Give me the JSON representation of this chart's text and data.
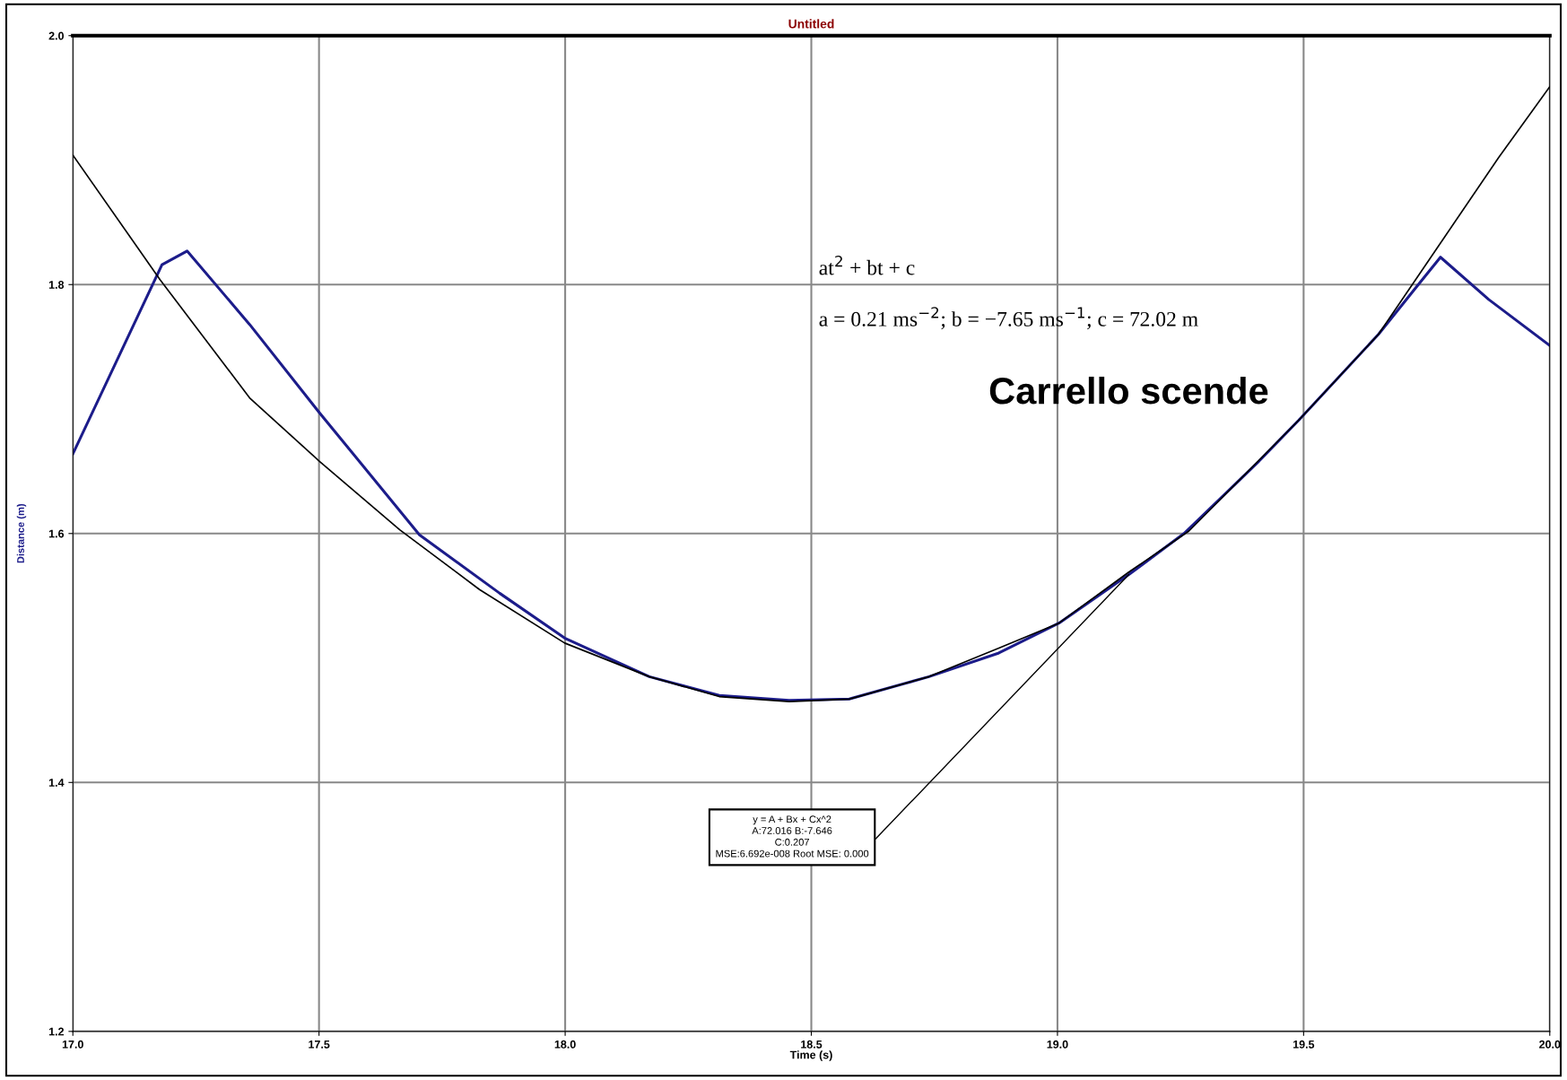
{
  "chart_data": {
    "type": "line",
    "title": "Untitled",
    "xlabel": "Time (s)",
    "ylabel": "Distance (m)",
    "xlim": [
      17.0,
      20.0
    ],
    "xticks": [
      {
        "value": 17.0,
        "label": "17.0"
      },
      {
        "value": 17.5,
        "label": "17.5"
      },
      {
        "value": 18.0,
        "label": "18.0"
      },
      {
        "value": 18.5,
        "label": "18.5"
      },
      {
        "value": 19.0,
        "label": "19.0"
      },
      {
        "value": 19.5,
        "label": "19.5"
      },
      {
        "value": 20.0,
        "label": "20.0"
      }
    ],
    "ylim": [
      1.2,
      2.0
    ],
    "yticks": [
      {
        "value": 1.2,
        "label": "1.2"
      },
      {
        "value": 1.4,
        "label": "1.4"
      },
      {
        "value": 1.6,
        "label": "1.6"
      },
      {
        "value": 1.8,
        "label": "1.8"
      },
      {
        "value": 2.0,
        "label": "2.0"
      }
    ],
    "grid": true,
    "legend": false,
    "marker": "none",
    "line_style": "solid",
    "series": [
      {
        "color": "#1c1c8a",
        "x": [
          17.0,
          17.181,
          17.232,
          17.359,
          17.501,
          17.704,
          17.867,
          17.999,
          18.171,
          18.313,
          18.455,
          18.577,
          18.739,
          18.881,
          19.003,
          19.145,
          19.257,
          19.409,
          19.49,
          19.652,
          19.729,
          19.778,
          19.876,
          20.0
        ],
        "values": [
          1.664,
          1.816,
          1.827,
          1.768,
          1.697,
          1.599,
          1.552,
          1.516,
          1.485,
          1.47,
          1.466,
          1.467,
          1.485,
          1.504,
          1.528,
          1.567,
          1.6,
          1.658,
          1.691,
          1.76,
          1.798,
          1.822,
          1.788,
          1.751
        ]
      },
      {
        "color": "#000000",
        "x": [
          17.0,
          17.177,
          17.359,
          17.501,
          17.664,
          17.826,
          17.999,
          18.171,
          18.313,
          18.455,
          18.577,
          18.739,
          18.881,
          19.003,
          19.145,
          19.267,
          19.49,
          19.652,
          19.774,
          19.896,
          20.0
        ],
        "values": [
          1.904,
          1.804,
          1.709,
          1.658,
          1.603,
          1.555,
          1.512,
          1.485,
          1.469,
          1.465,
          1.467,
          1.485,
          1.508,
          1.528,
          1.569,
          1.602,
          1.691,
          1.76,
          1.831,
          1.902,
          1.959
        ]
      }
    ],
    "annotations": [
      "at$^{2}$ + bt + c",
      "a = 0.21 ms$^{−2}$; b = −7.65 ms$^{−1}$; c = 72.02 m",
      "Carrello scende",
      {
        "text": "y = A + Bx + Cx^2\nA:72.016 B:-7.646\nC:0.207\nMSE:6.692e-008 Root MSE: 0.000",
        "x": 19.145,
        "y": 1.567
      }
    ]
  }
}
